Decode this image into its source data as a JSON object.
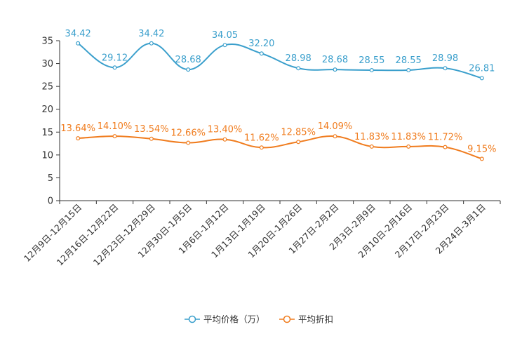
{
  "chart_data": {
    "type": "line",
    "title": "",
    "xlabel": "",
    "ylabel": "",
    "ylim": [
      0,
      35
    ],
    "yticks": [
      0,
      5,
      10,
      15,
      20,
      25,
      30,
      35
    ],
    "grid": false,
    "legend_position": "bottom-center",
    "categories": [
      "12月9日-12月15日",
      "12月16日-12月22日",
      "12月23日-12月29日",
      "12月30日-1月5日",
      "1月6日-1月12日",
      "1月13日-1月19日",
      "1月20日-1月26日",
      "1月27日-2月2日",
      "2月3日-2月9日",
      "2月10日-2月16日",
      "2月17日-2月23日",
      "2月24日-3月1日"
    ],
    "series": [
      {
        "name": "平均价格（万）",
        "color": "#3a9fcc",
        "values": [
          34.42,
          29.12,
          34.42,
          28.68,
          34.05,
          32.2,
          28.98,
          28.68,
          28.55,
          28.55,
          28.98,
          26.81
        ],
        "labels": [
          "34.42",
          "29.12",
          "34.42",
          "28.68",
          "34.05",
          "32.20",
          "28.98",
          "28.68",
          "28.55",
          "28.55",
          "28.98",
          "26.81"
        ]
      },
      {
        "name": "平均折扣",
        "color": "#f07c1e",
        "values": [
          13.64,
          14.1,
          13.54,
          12.66,
          13.4,
          11.62,
          12.85,
          14.09,
          11.83,
          11.83,
          11.72,
          9.15
        ],
        "labels": [
          "13.64%",
          "14.10%",
          "13.54%",
          "12.66%",
          "13.40%",
          "11.62%",
          "12.85%",
          "14.09%",
          "11.83%",
          "11.83%",
          "11.72%",
          "9.15%"
        ]
      }
    ]
  }
}
